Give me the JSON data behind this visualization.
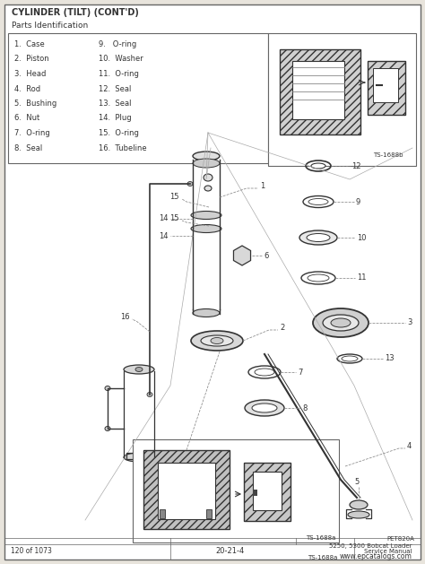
{
  "title": "CYLINDER (TILT) (CONT'D)",
  "subtitle": "Parts Identification",
  "parts_col1": [
    "1.  Case",
    "2.  Piston",
    "3.  Head",
    "4.  Rod",
    "5.  Bushing",
    "6.  Nut",
    "7.  O-ring",
    "8.  Seal"
  ],
  "parts_col2": [
    "9.   O-ring",
    "10.  Washer",
    "11.  O-ring",
    "12.  Seal",
    "13.  Seal",
    "14.  Plug",
    "15.  O-ring",
    "16.  Tubeline"
  ],
  "footer_left": "120 of 1073",
  "footer_center": "20-21-4",
  "footer_right1": "5250, 5300 Bobcat Loader",
  "footer_right2": "Service Manual",
  "footer_right3": "www.epcatalogs.com",
  "ts_upper": "TS-1688b",
  "ts_lower": "TS-1688a",
  "part_number": "PET820A",
  "bg": "#ffffff",
  "page_bg": "#e8e4dc",
  "border": "#666666",
  "dark": "#333333",
  "mid": "#888888",
  "light": "#cccccc"
}
